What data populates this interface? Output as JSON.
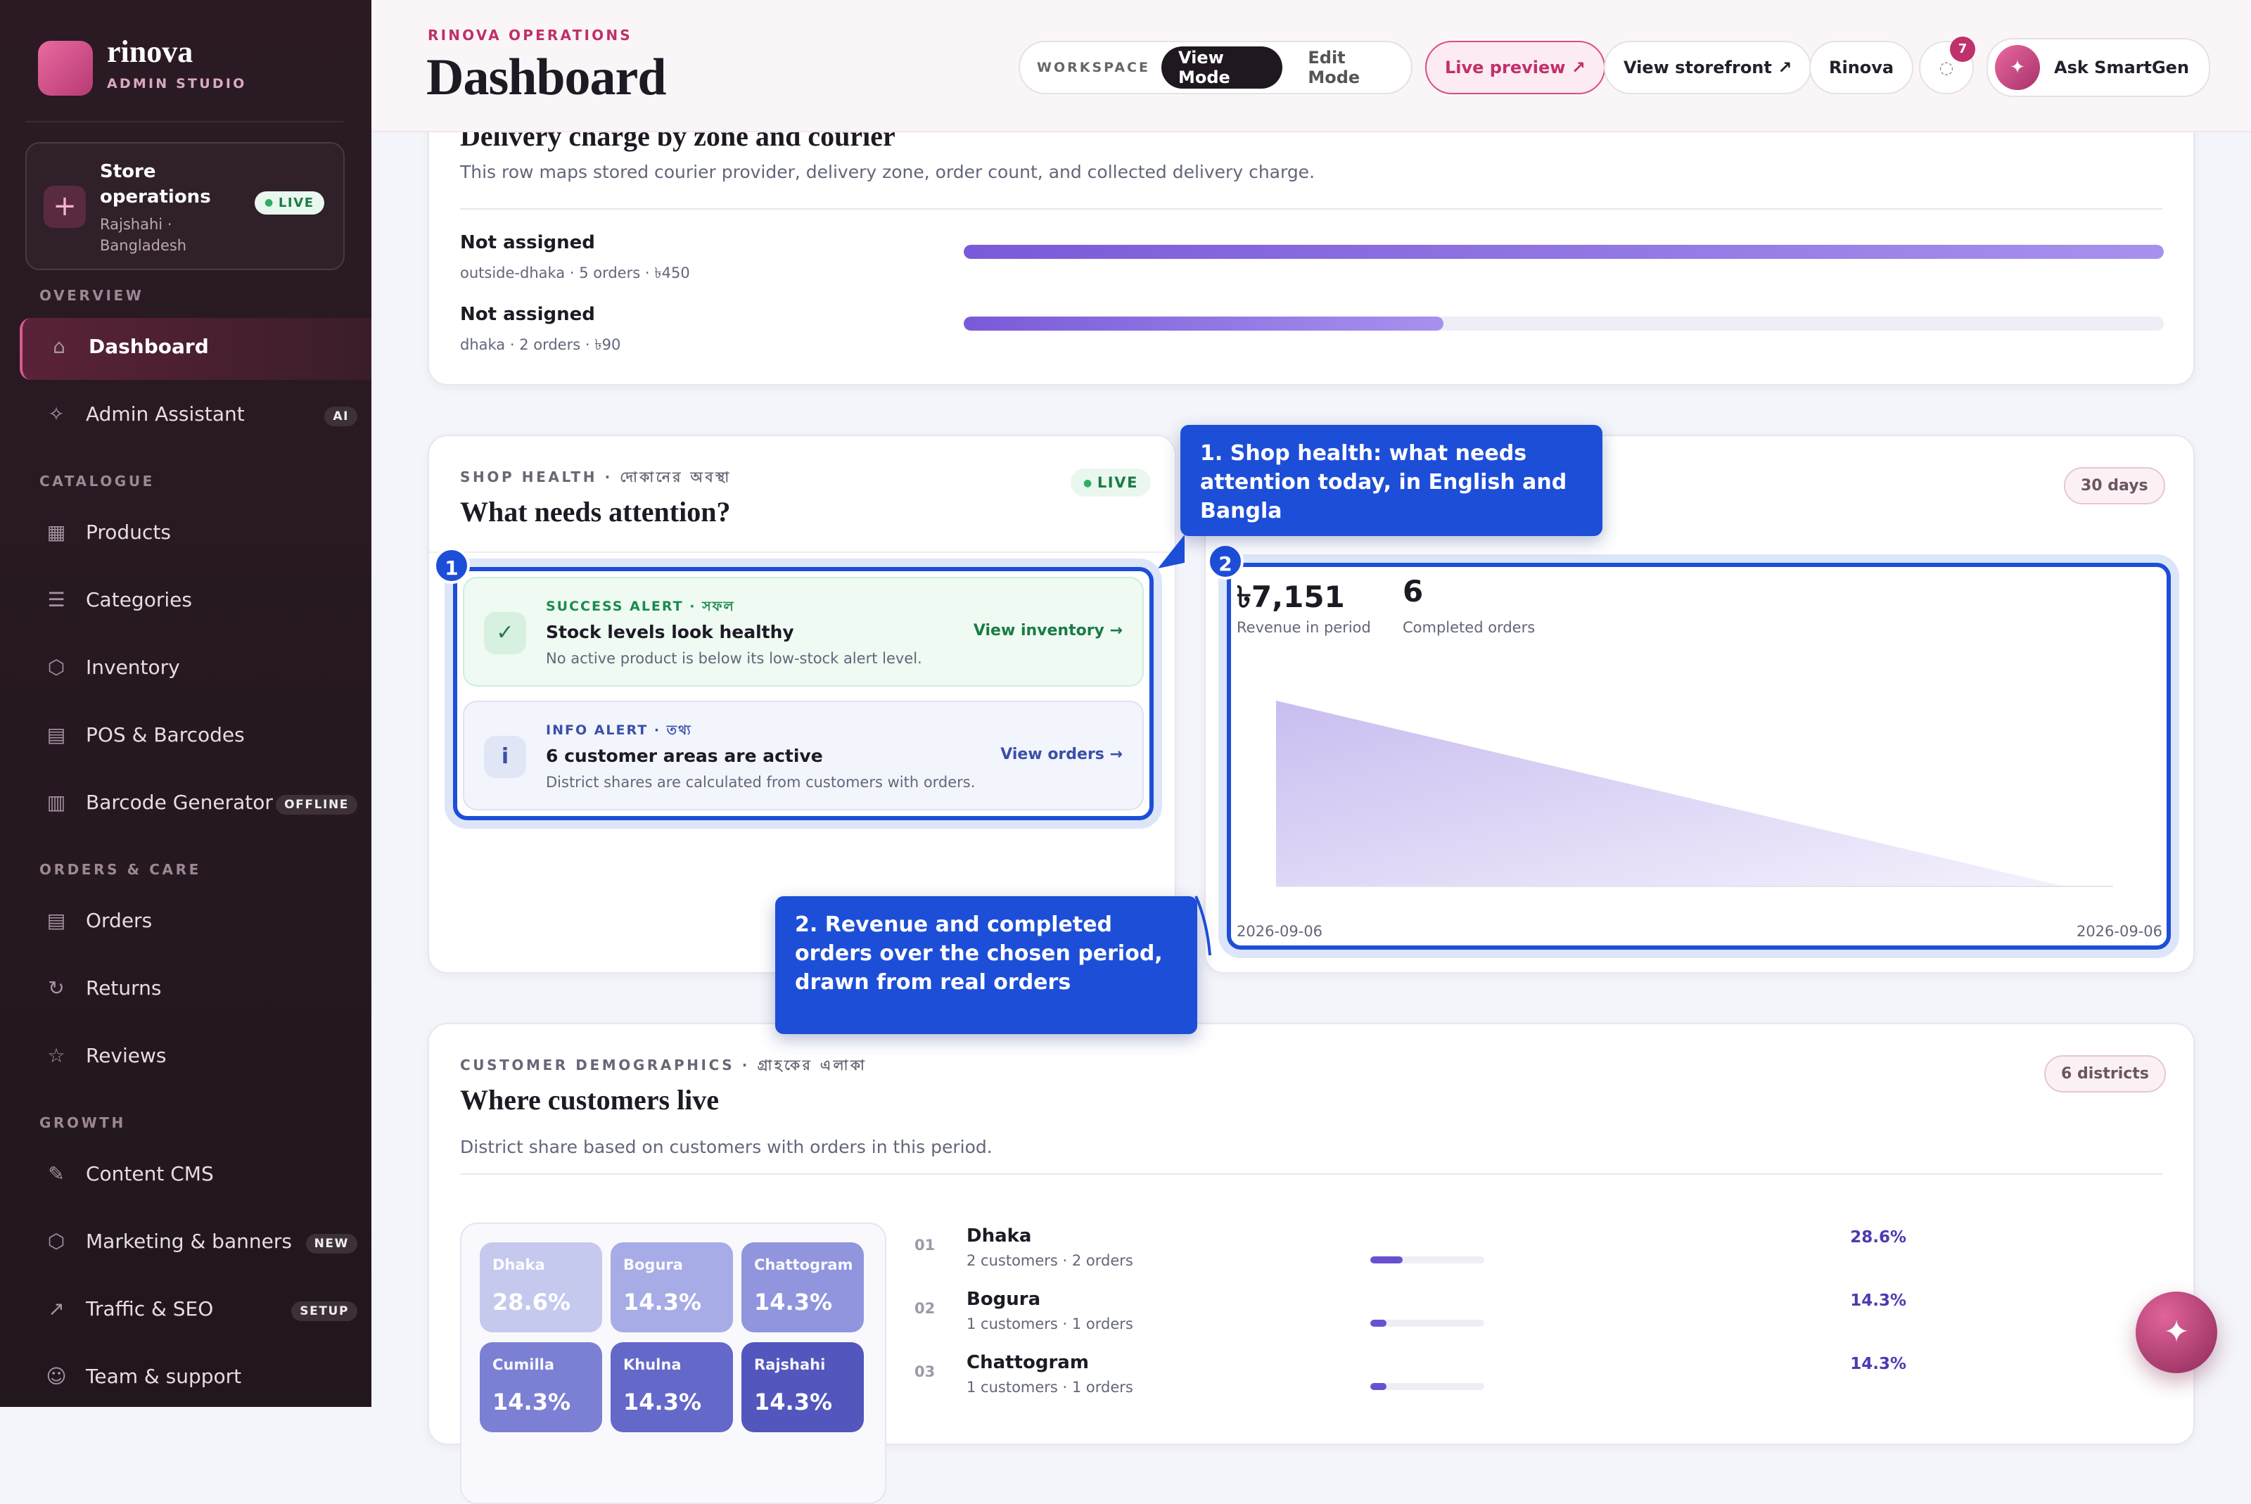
{
  "brand": {
    "name": "rinova",
    "subtitle": "ADMIN STUDIO"
  },
  "store": {
    "title": "Store operations",
    "location": "Rajshahi · Bangladesh",
    "badge": "LIVE"
  },
  "nav": [
    {
      "heading": "OVERVIEW",
      "items": [
        {
          "label": "Dashboard",
          "icon": "⌂"
        },
        {
          "label": "Admin Assistant",
          "icon": "✧",
          "badge": "AI"
        }
      ]
    },
    {
      "heading": "CATALOGUE",
      "items": [
        {
          "label": "Products",
          "icon": "▦"
        },
        {
          "label": "Categories",
          "icon": "☰"
        },
        {
          "label": "Inventory",
          "icon": "⬡"
        },
        {
          "label": "POS & Barcodes",
          "icon": "▤"
        },
        {
          "label": "Barcode Generator",
          "icon": "▥",
          "badge": "OFFLINE"
        }
      ]
    },
    {
      "heading": "ORDERS & CARE",
      "items": [
        {
          "label": "Orders",
          "icon": "▤"
        },
        {
          "label": "Returns",
          "icon": "↻"
        },
        {
          "label": "Reviews",
          "icon": "☆"
        }
      ]
    },
    {
      "heading": "GROWTH",
      "items": [
        {
          "label": "Content CMS",
          "icon": "✎"
        },
        {
          "label": "Marketing & banners",
          "icon": "⬡",
          "badge": "NEW"
        },
        {
          "label": "Traffic & SEO",
          "icon": "↗",
          "badge": "SETUP"
        },
        {
          "label": "Team & support",
          "icon": "☺"
        }
      ]
    }
  ],
  "header": {
    "eyebrow": "RINOVA OPERATIONS",
    "title": "Dashboard",
    "workspace_label": "WORKSPACE",
    "modes": [
      "View Mode",
      "Edit Mode"
    ],
    "live_preview": "Live preview ↗",
    "storefront": "View storefront ↗",
    "store_name": "Rinova",
    "notifications": "7",
    "assistant": "Ask SmartGen"
  },
  "delivery": {
    "title": "Delivery charge by zone and courier",
    "description": "This row maps stored courier provider, delivery zone, order count, and collected delivery charge.",
    "rows": [
      {
        "name": "Not assigned",
        "detail": "outside-dhaka · 5 orders · ৳450",
        "bar_share": 100
      },
      {
        "name": "Not assigned",
        "detail": "dhaka · 2 orders · ৳90",
        "bar_share": 40
      }
    ]
  },
  "health": {
    "eyebrow": "SHOP HEALTH · দোকানের অবস্থা",
    "title": "What needs attention?",
    "badge": "LIVE",
    "alerts": [
      {
        "kind": "SUCCESS ALERT · সফল",
        "icon": "✓",
        "title": "Stock levels look healthy",
        "text": "No active product is below its low-stock alert level.",
        "action": "View inventory →"
      },
      {
        "kind": "INFO ALERT · তথ্য",
        "icon": "i",
        "title": "6 customer areas are active",
        "text": "District shares are calculated from customers with orders.",
        "action": "View orders →"
      }
    ]
  },
  "revenue": {
    "badge": "30 days",
    "revenue": "৳7,151",
    "revenue_label": "Revenue in period",
    "orders": "6",
    "orders_label": "Completed orders",
    "x_start": "2026-09-06",
    "x_end": "2026-09-06"
  },
  "callouts": [
    {
      "number": "1",
      "text": "1. Shop health: what needs attention today, in English and Bangla"
    },
    {
      "number": "2",
      "text": "2. Revenue and completed orders over the chosen period, drawn from real orders"
    }
  ],
  "demographics": {
    "eyebrow": "CUSTOMER DEMOGRAPHICS · গ্রাহকের এলাকা",
    "title": "Where customers live",
    "description": "District share based on customers with orders in this period.",
    "badge": "6 districts",
    "tiles": [
      {
        "name": "Dhaka",
        "share": "28.6%"
      },
      {
        "name": "Bogura",
        "share": "14.3%"
      },
      {
        "name": "Chattogram",
        "share": "14.3%"
      },
      {
        "name": "Cumilla",
        "share": "14.3%"
      },
      {
        "name": "Khulna",
        "share": "14.3%"
      },
      {
        "name": "Rajshahi",
        "share": "14.3%"
      }
    ],
    "list": [
      {
        "rank": "01",
        "name": "Dhaka",
        "detail": "2 customers · 2 orders",
        "share": {
          "value": 28.6,
          "label": "28.6%"
        }
      },
      {
        "rank": "02",
        "name": "Bogura",
        "detail": "1 customers · 1 orders",
        "share": {
          "value": 14.3,
          "label": "14.3%"
        }
      },
      {
        "rank": "03",
        "name": "Chattogram",
        "detail": "1 customers · 1 orders",
        "share": {
          "value": 14.3,
          "label": "14.3%"
        }
      }
    ]
  },
  "fab_icon": "✦"
}
